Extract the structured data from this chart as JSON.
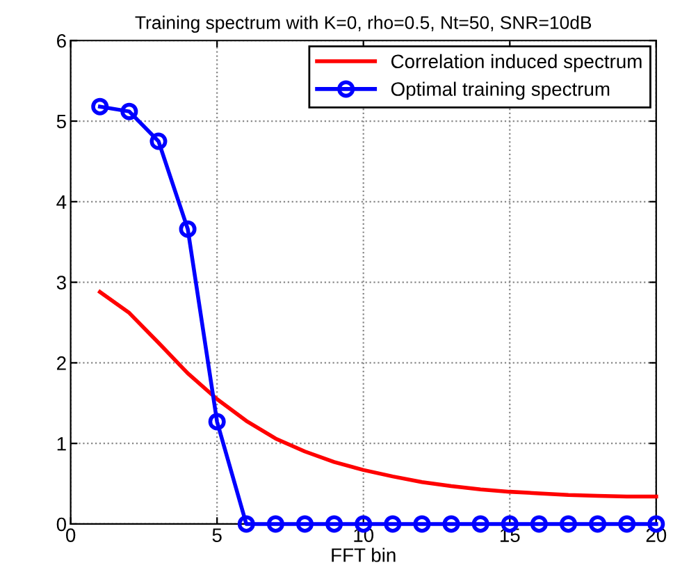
{
  "chart_data": {
    "type": "line",
    "title": "Training spectrum with K=0, rho=0.5, Nt=50, SNR=10dB",
    "xlabel": "FFT bin",
    "x": [
      1,
      2,
      3,
      4,
      5,
      6,
      7,
      8,
      9,
      10,
      11,
      12,
      13,
      14,
      15,
      16,
      17,
      18,
      19,
      20
    ],
    "series": [
      {
        "name": "Correlation induced spectrum",
        "color": "#ff0000",
        "marker": "none",
        "values": [
          2.88,
          2.62,
          2.25,
          1.87,
          1.55,
          1.28,
          1.06,
          0.9,
          0.77,
          0.67,
          0.59,
          0.52,
          0.47,
          0.43,
          0.4,
          0.38,
          0.36,
          0.35,
          0.34,
          0.34
        ]
      },
      {
        "name": "Optimal training spectrum",
        "color": "#0000ff",
        "marker": "circle",
        "values": [
          5.18,
          5.12,
          4.75,
          3.66,
          1.27,
          0,
          0,
          0,
          0,
          0,
          0,
          0,
          0,
          0,
          0,
          0,
          0,
          0,
          0,
          0
        ]
      }
    ],
    "xlim": [
      0,
      20
    ],
    "xticks": [
      0,
      5,
      10,
      15,
      20
    ],
    "ylim": [
      0,
      6
    ],
    "yticks": [
      0,
      1,
      2,
      3,
      4,
      5,
      6
    ],
    "grid": true,
    "legend": "top right",
    "line_style": "solid"
  }
}
